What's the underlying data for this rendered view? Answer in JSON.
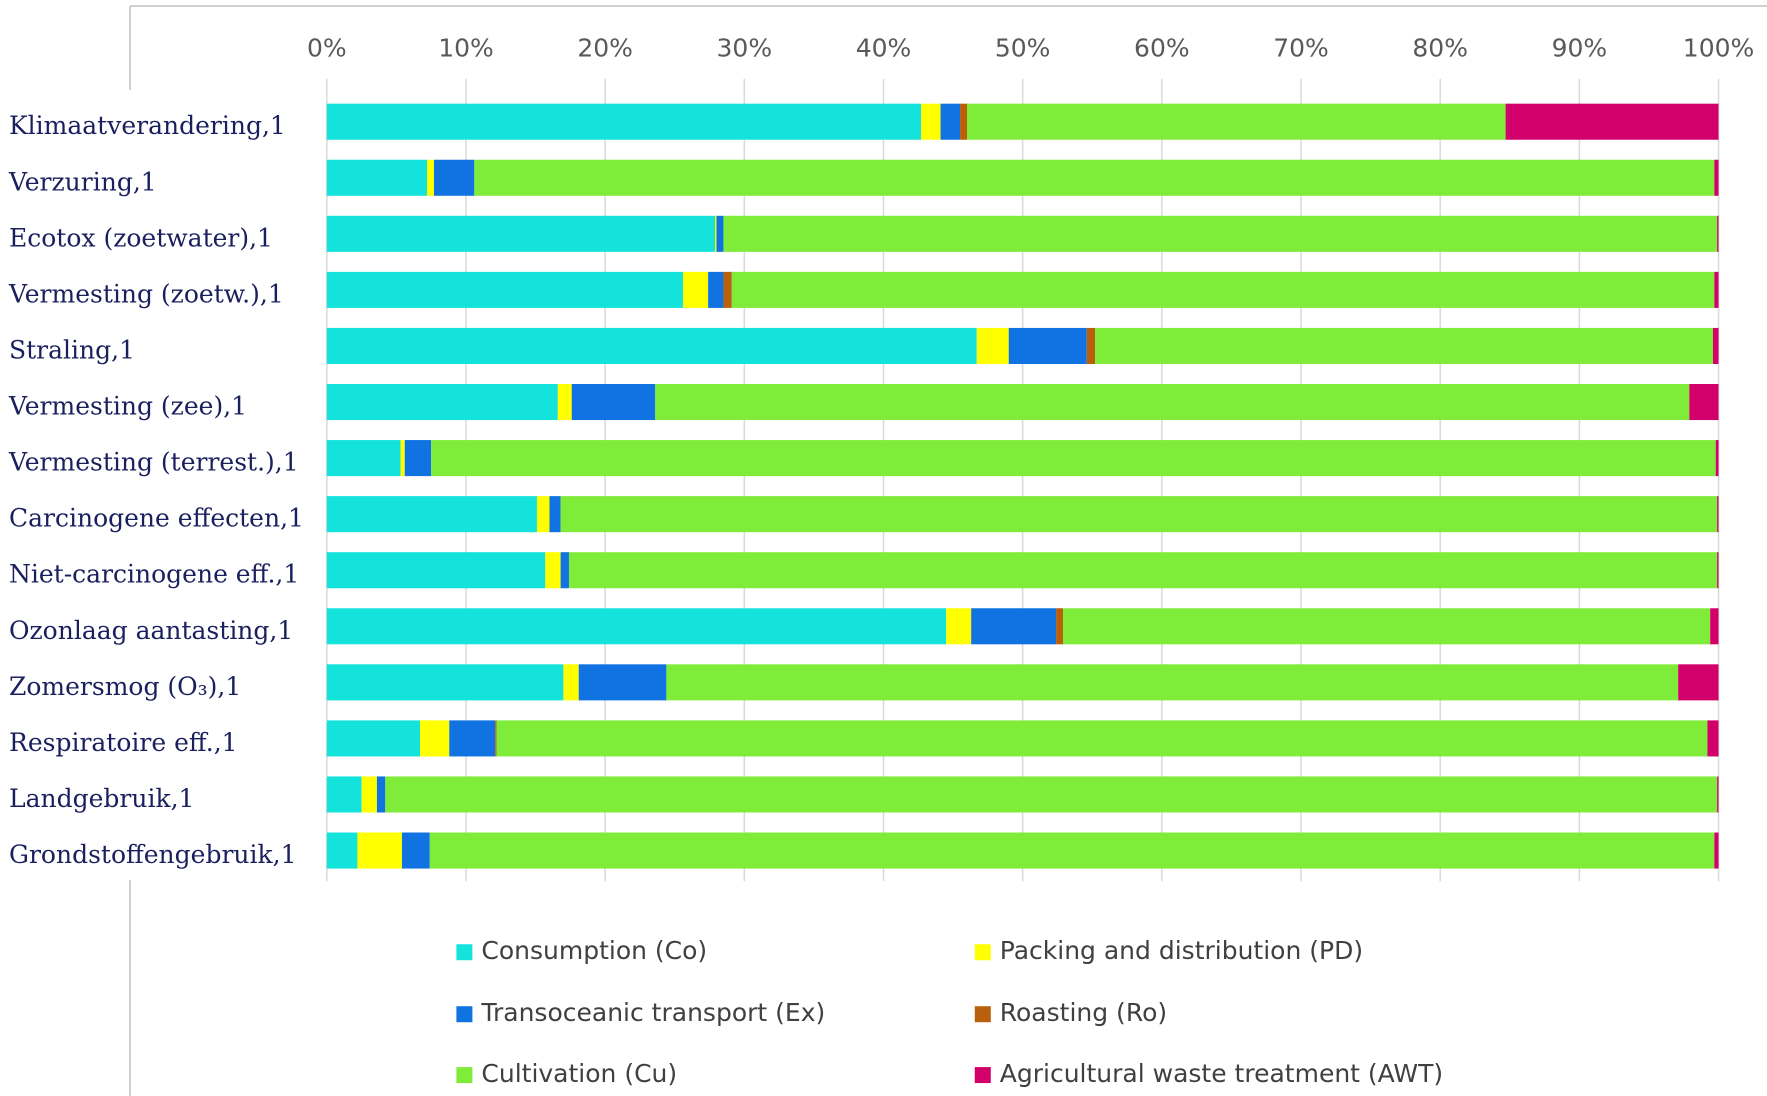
{
  "chart_data": {
    "type": "stacked_bar_horizontal",
    "categories": [
      "Klimaatverandering,1",
      "Verzuring,1",
      "Ecotox (zoetwater),1",
      "Vermesting (zoetw.),1",
      "Straling,1",
      "Vermesting (zee),1",
      "Vermesting (terrest.),1",
      "Carcinogene effecten,1",
      "Niet-carcinogene eff.,1",
      "Ozonlaag aantasting,1",
      "Zomersmog (O₃),1",
      "Respiratoire eff.,1",
      "Landgebruik,1",
      "Grondstoffengebruik,1"
    ],
    "series": [
      {
        "name": "Consumption (Co)",
        "color": "#14e3dc",
        "values": [
          42.7,
          7.2,
          27.9,
          25.6,
          46.7,
          16.6,
          5.3,
          15.1,
          15.7,
          44.5,
          17.0,
          6.7,
          2.5,
          2.2
        ]
      },
      {
        "name": "Packing and distribution (PD)",
        "color": "#ffff00",
        "values": [
          1.4,
          0.5,
          0.1,
          1.8,
          2.3,
          1.0,
          0.3,
          0.9,
          1.1,
          1.8,
          1.1,
          2.1,
          1.1,
          3.2
        ]
      },
      {
        "name": "Transoceanic transport (Ex)",
        "color": "#1172e2",
        "values": [
          1.4,
          2.9,
          0.5,
          1.1,
          5.6,
          6.0,
          1.9,
          0.8,
          0.6,
          6.1,
          6.3,
          3.3,
          0.6,
          2.0
        ]
      },
      {
        "name": "Roasting (Ro)",
        "color": "#b8600c",
        "values": [
          0.5,
          0,
          0,
          0.6,
          0.6,
          0,
          0,
          0,
          0,
          0.5,
          0,
          0.1,
          0,
          0
        ]
      },
      {
        "name": "Cultivation (Cu)",
        "color": "#80ec3a",
        "values": [
          38.7,
          89.1,
          71.4,
          70.6,
          44.4,
          74.3,
          92.3,
          83.1,
          82.5,
          46.5,
          72.7,
          87.0,
          95.7,
          92.3
        ]
      },
      {
        "name": "Agricultural waste treatment (AWT)",
        "color": "#d2006a",
        "values": [
          15.3,
          0.3,
          0.1,
          0.3,
          0.4,
          2.1,
          0.2,
          0.1,
          0.1,
          0.6,
          2.9,
          0.8,
          0.1,
          0.3
        ]
      }
    ],
    "xlim": [
      0,
      100
    ],
    "xticks": [
      {
        "value": 0,
        "label": "0%"
      },
      {
        "value": 10,
        "label": "10%"
      },
      {
        "value": 20,
        "label": "20%"
      },
      {
        "value": 30,
        "label": "30%"
      },
      {
        "value": 40,
        "label": "40%"
      },
      {
        "value": 50,
        "label": "50%"
      },
      {
        "value": 60,
        "label": "60%"
      },
      {
        "value": 70,
        "label": "70%"
      },
      {
        "value": 80,
        "label": "80%"
      },
      {
        "value": 90,
        "label": "90%"
      },
      {
        "value": 100,
        "label": "100%"
      }
    ],
    "grid": true,
    "legend": "bottom"
  }
}
